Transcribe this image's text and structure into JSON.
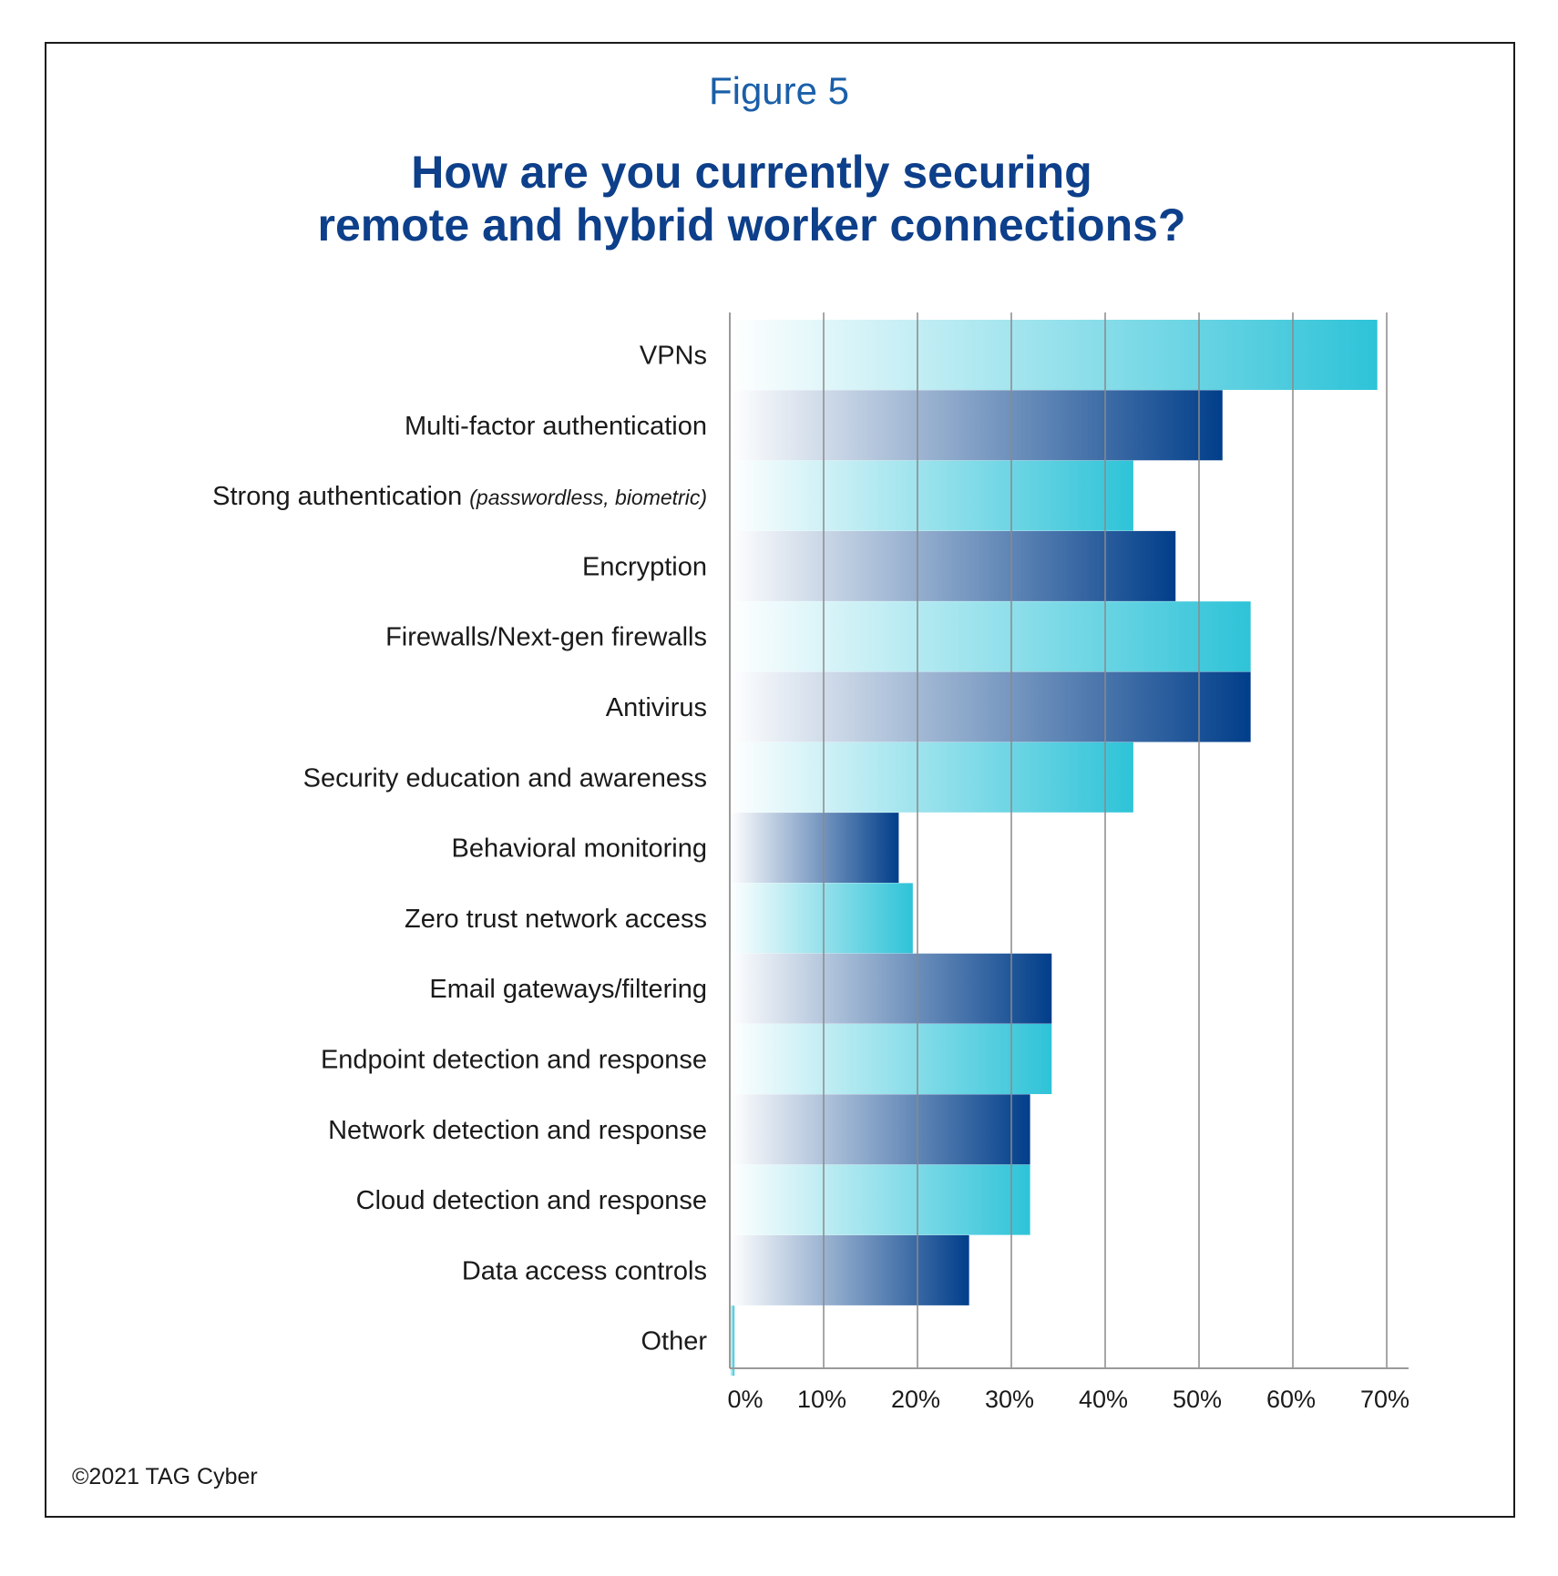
{
  "figure_label": "Figure 5",
  "copyright": "©2021 TAG Cyber",
  "chart_data": {
    "type": "bar",
    "orientation": "horizontal",
    "title_lines": [
      "How are you currently securing",
      "remote and hybrid worker connections?"
    ],
    "categories": [
      "VPNs",
      "Multi-factor authentication",
      "Strong authentication",
      "Encryption",
      "Firewalls/Next-gen firewalls",
      "Antivirus",
      "Security education and awareness",
      "Behavioral monitoring",
      "Zero trust network access",
      "Email gateways/filtering",
      "Endpoint detection and response",
      "Network detection and response",
      "Cloud detection and response",
      "Data access controls",
      "Other"
    ],
    "category_notes": [
      "",
      "",
      "(passwordless, biometric)",
      "",
      "",
      "",
      "",
      "",
      "",
      "",
      "",
      "",
      "",
      "",
      ""
    ],
    "values": [
      69,
      52.5,
      43,
      47.5,
      55.5,
      55.5,
      43,
      18,
      19.5,
      34.3,
      34.3,
      32,
      32,
      25.5,
      0.5
    ],
    "xlim": [
      0,
      70
    ],
    "xticks": [
      0,
      10,
      20,
      30,
      40,
      50,
      60,
      70
    ],
    "xtick_labels": [
      "0%",
      "10%",
      "20%",
      "30%",
      "40%",
      "50%",
      "60%",
      "70%"
    ],
    "grid": true,
    "colors": {
      "light_bar_end": "#2ec3d8",
      "dark_bar_end": "#013e8a",
      "bar_start": "#ffffff",
      "grid": "#8a8a8a",
      "title": "#0d3f8a",
      "figure_label": "#1a5fa8"
    }
  }
}
